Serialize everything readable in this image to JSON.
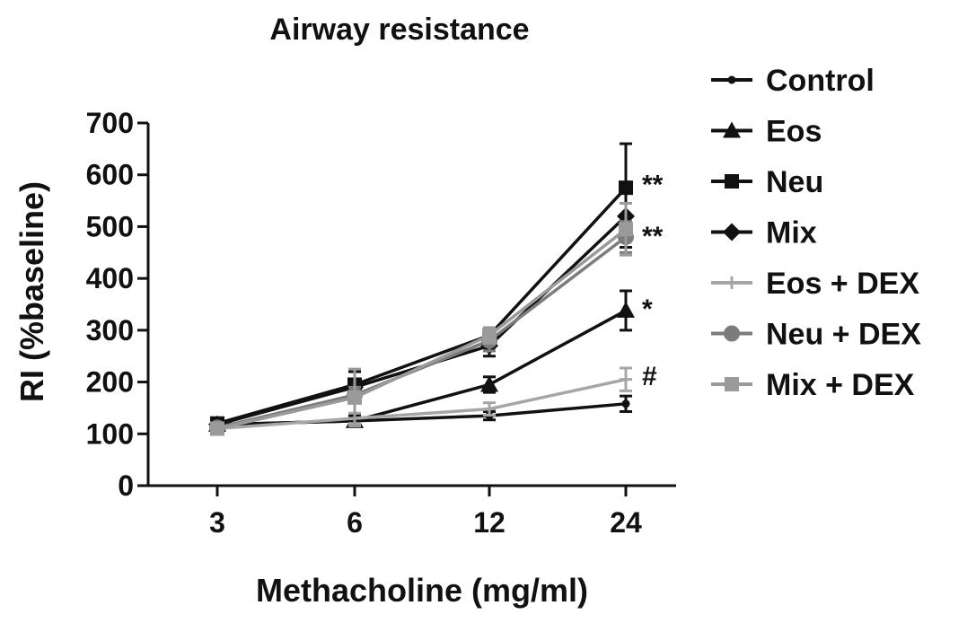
{
  "chart_data": {
    "type": "line",
    "title": "Airway resistance",
    "xlabel": "Methacholine (mg/ml)",
    "ylabel": "RI (%baseline)",
    "categories": [
      "3",
      "6",
      "12",
      "24"
    ],
    "ylim": [
      0,
      700
    ],
    "yticks": [
      "0",
      "100",
      "200",
      "300",
      "400",
      "500",
      "600",
      "700"
    ],
    "grid": false,
    "legend_position": "right",
    "series": [
      {
        "name": "Control",
        "color": "#111111",
        "marker": "dot",
        "values": [
          118,
          125,
          135,
          158
        ],
        "errors": [
          6,
          8,
          8,
          15
        ]
      },
      {
        "name": "Eos",
        "color": "#111111",
        "marker": "triangle",
        "values": [
          118,
          125,
          195,
          338
        ],
        "errors": [
          6,
          10,
          15,
          38
        ]
      },
      {
        "name": "Neu",
        "color": "#111111",
        "marker": "square",
        "values": [
          120,
          195,
          290,
          575
        ],
        "errors": [
          6,
          25,
          15,
          85
        ]
      },
      {
        "name": "Mix",
        "color": "#111111",
        "marker": "diamond",
        "values": [
          118,
          190,
          270,
          520
        ],
        "errors": [
          6,
          15,
          20,
          60
        ]
      },
      {
        "name": "Eos + DEX",
        "color": "#a6a6a6",
        "marker": "plus",
        "values": [
          110,
          130,
          148,
          205
        ],
        "errors": [
          5,
          10,
          12,
          22
        ]
      },
      {
        "name": "Neu + DEX",
        "color": "#7c7c7c",
        "marker": "circle",
        "values": [
          112,
          175,
          280,
          480
        ],
        "errors": [
          5,
          15,
          20,
          30
        ]
      },
      {
        "name": "Mix + DEX",
        "color": "#9a9a9a",
        "marker": "square",
        "values": [
          110,
          170,
          290,
          495
        ],
        "errors": [
          5,
          55,
          15,
          50
        ]
      }
    ],
    "annotations": [
      {
        "text": "**",
        "x": "24",
        "y": 585
      },
      {
        "text": "**",
        "x": "24",
        "y": 485
      },
      {
        "text": "*",
        "x": "24",
        "y": 345
      },
      {
        "text": "#",
        "x": "24",
        "y": 215
      }
    ]
  }
}
